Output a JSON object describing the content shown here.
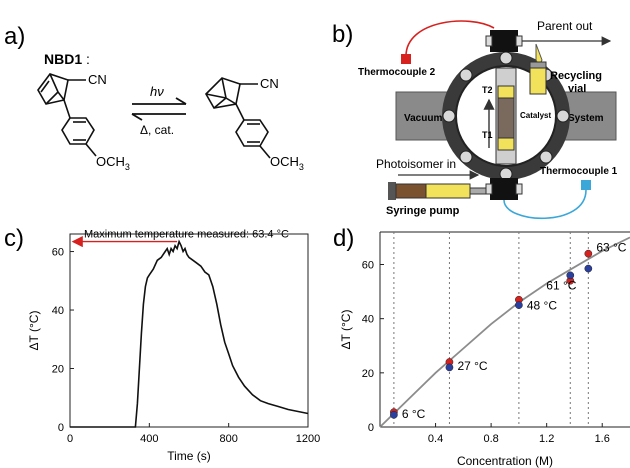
{
  "panels": {
    "a": {
      "letter": "a)",
      "compound": "NBD1",
      "colon": ":",
      "cn_left": "CN",
      "cn_right": "CN",
      "och3_left": "OCH",
      "och3_right": "OCH",
      "sub3": "3",
      "hv": "hν",
      "reverse": "Δ, cat."
    },
    "b": {
      "letter": "b)",
      "thermocouple2": "Thermocouple 2",
      "thermocouple1": "Thermocouple 1",
      "parent_out": "Parent out",
      "recycling": "Recycling",
      "vial": "vial",
      "vacuum": "Vacuum",
      "system": "System",
      "catalyst": "Catalyst",
      "t2": "T2",
      "t1": "T1",
      "photoisomer_in": "Photoisomer in",
      "syringe_pump": "Syringe pump"
    },
    "c": {
      "letter": "c)"
    },
    "d": {
      "letter": "d)"
    }
  },
  "colors": {
    "trace": "#111111",
    "red": "#d6211f",
    "blue": "#2b3f9e",
    "fit": "#8c8c8c",
    "accent_blue": "#3aa7d8",
    "yellow": "#f2e15a",
    "brown": "#7a5230"
  },
  "chart_data": [
    {
      "type": "line",
      "xlabel": "Time (s)",
      "ylabel": "ΔT (°C)",
      "xlim": [
        0,
        1200
      ],
      "ylim": [
        0,
        66
      ],
      "xticks": [
        "0",
        "400",
        "800",
        "1200"
      ],
      "yticks": [
        "0",
        "20",
        "40",
        "60"
      ],
      "annotation": "Maximum temperature measured: 63.4 °C",
      "max_value": 63.4,
      "series": [
        {
          "x": [
            0,
            300,
            330,
            340,
            350,
            360,
            370,
            380,
            390,
            400,
            420,
            440,
            460,
            480,
            490,
            500,
            510,
            520,
            530,
            540,
            550,
            560,
            570,
            580,
            590,
            600,
            620,
            640,
            660,
            680,
            700,
            720,
            740,
            760,
            780,
            800,
            820,
            850,
            880,
            920,
            960,
            1000,
            1050,
            1100,
            1150,
            1200
          ],
          "y": [
            0,
            0,
            0,
            8,
            20,
            32,
            42,
            48,
            51,
            52,
            54,
            57,
            58,
            60,
            61,
            59,
            61,
            60,
            62,
            61,
            63.4,
            62,
            60,
            61,
            59,
            58,
            57,
            56,
            55,
            53,
            52,
            48,
            42,
            35,
            29,
            25,
            21,
            17,
            14,
            11,
            9,
            8,
            7,
            6,
            5.3,
            4.6
          ]
        }
      ]
    },
    {
      "type": "scatter",
      "xlabel": "Concentration (M)",
      "ylabel": "ΔT (°C)",
      "xlim": [
        0,
        1.8
      ],
      "ylim": [
        0,
        72
      ],
      "xticks": [
        "0.4",
        "0.8",
        "1.2",
        "1.6"
      ],
      "yticks": [
        "0",
        "20",
        "40",
        "60"
      ],
      "vlines": [
        0.1,
        0.5,
        1.0,
        1.37,
        1.5
      ],
      "annotations": [
        "6 °C",
        "27 °C",
        "48 °C",
        "61 °C",
        "63 °C"
      ],
      "series": [
        {
          "x": [
            0.1,
            0.5,
            1.0,
            1.37,
            1.5
          ],
          "y": [
            5.5,
            24,
            47,
            54,
            64
          ]
        },
        {
          "x": [
            0.1,
            0.5,
            1.0,
            1.37,
            1.5
          ],
          "y": [
            4.5,
            22,
            45,
            56,
            58.5
          ]
        }
      ],
      "fit": {
        "x": [
          0,
          0.2,
          0.4,
          0.6,
          0.8,
          1.0,
          1.2,
          1.4,
          1.6,
          1.8
        ],
        "y": [
          0,
          10,
          20,
          29,
          38,
          46,
          53,
          59,
          65,
          70
        ]
      }
    }
  ]
}
